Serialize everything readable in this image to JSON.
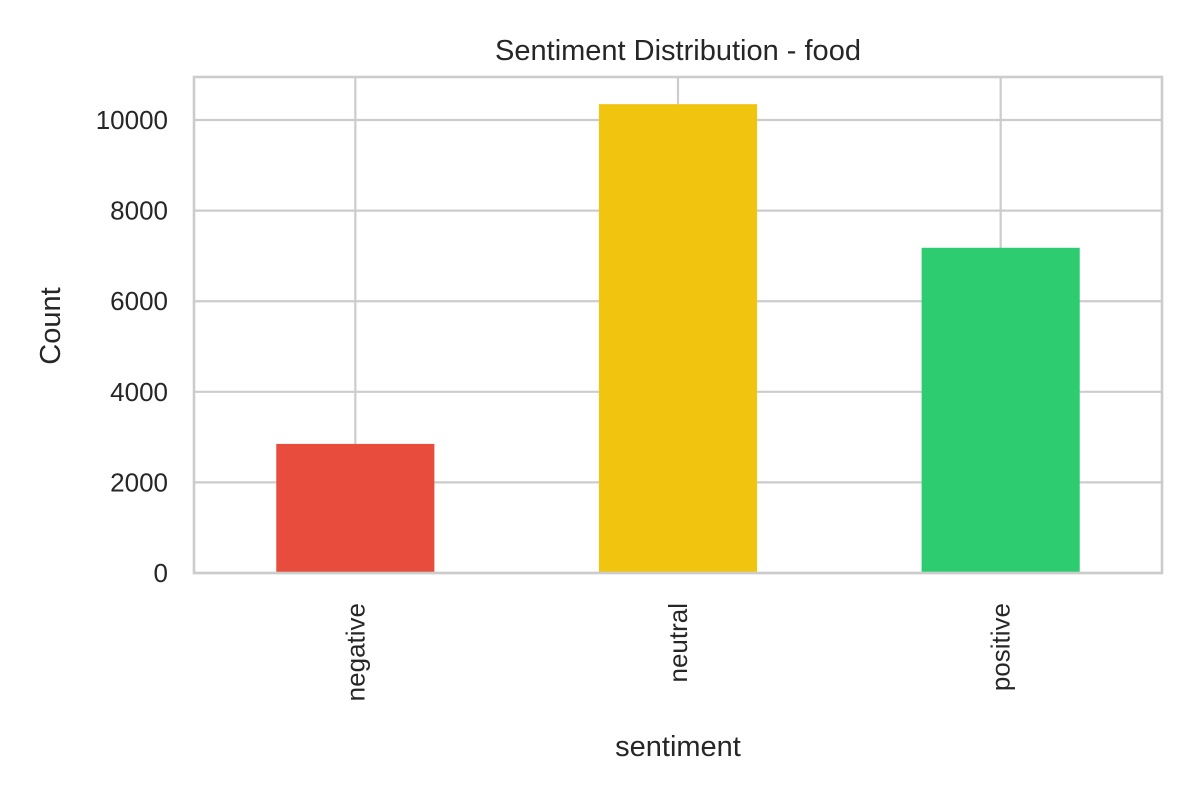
{
  "chart_data": {
    "type": "bar",
    "title": "Sentiment Distribution - food",
    "xlabel": "sentiment",
    "ylabel": "Count",
    "categories": [
      "negative",
      "neutral",
      "positive"
    ],
    "values": [
      2850,
      10350,
      7180
    ],
    "colors": [
      "#e74c3c",
      "#f1c40f",
      "#2ecc71"
    ],
    "ylim": [
      0,
      10950
    ],
    "yticks": [
      0,
      2000,
      4000,
      6000,
      8000,
      10000
    ],
    "grid": true,
    "legend": "none"
  }
}
